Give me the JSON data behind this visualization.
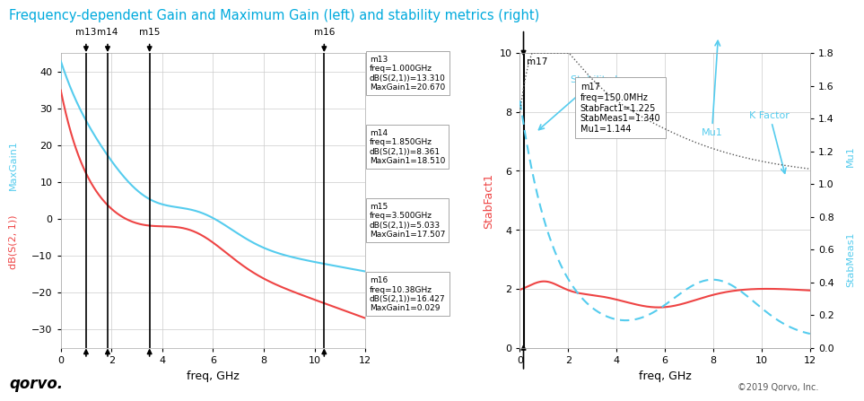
{
  "title": "Frequency-dependent Gain and Maximum Gain (left) and stability metrics (right)",
  "title_color": "#00aadd",
  "background_color": "#ffffff",
  "left": {
    "xlabel": "freq, GHz",
    "ylabel_blue": "MaxGain1",
    "ylabel_red": "dB(S(2, 1))",
    "xlim": [
      0,
      12
    ],
    "ylim": [
      -35,
      45
    ],
    "yticks": [
      -30,
      -20,
      -10,
      0,
      10,
      20,
      30,
      40
    ],
    "xticks": [
      0,
      2,
      4,
      6,
      8,
      10,
      12
    ],
    "blue_color": "#55ccee",
    "red_color": "#ee4444",
    "markers": [
      {
        "name": "m13",
        "freq": 1.0
      },
      {
        "name": "m14",
        "freq": 1.85
      },
      {
        "name": "m15",
        "freq": 3.5
      },
      {
        "name": "m16",
        "freq": 10.38
      }
    ],
    "annotations": [
      "m13\nfreq=1.000GHz\ndB(S(2,1))=13.310\nMaxGain1=20.670",
      "m14\nfreq=1.850GHz\ndB(S(2,1))=8.361\nMaxGain1=18.510",
      "m15\nfreq=3.500GHz\ndB(S(2,1))=5.033\nMaxGain1=17.507",
      "m16\nfreq=10.38GHz\ndB(S(2,1))=16.427\nMaxGain1=0.029"
    ]
  },
  "right": {
    "xlabel": "freq, GHz",
    "ylabel_left": "StabFact1",
    "ylabel_right_top": "Mu1",
    "ylabel_right_bot": "StabMeas1",
    "xlim": [
      0,
      12
    ],
    "ylim_left": [
      0,
      10
    ],
    "ylim_right": [
      0.0,
      1.8
    ],
    "yticks_left": [
      0,
      2,
      4,
      6,
      8,
      10
    ],
    "yticks_right": [
      0.0,
      0.2,
      0.4,
      0.6,
      0.8,
      1.0,
      1.2,
      1.4,
      1.6,
      1.8
    ],
    "xticks": [
      0,
      2,
      4,
      6,
      8,
      10,
      12
    ],
    "red_color": "#ee4444",
    "blue_color": "#55ccee",
    "dark_gray": "#555555",
    "stability_b_label": "Stability b",
    "mu1_label": "Mu1",
    "kfactor_label": "K Factor",
    "marker17": {
      "name": "m17",
      "freq": 0.15
    },
    "annotation17": "m17\nfreq=150.0MHz\nStabFact1=1.225\nStabMeas1=1.340\nMu1=1.144"
  },
  "qorvo_logo": "qorvo.",
  "copyright": "©2019 Qorvo, Inc."
}
